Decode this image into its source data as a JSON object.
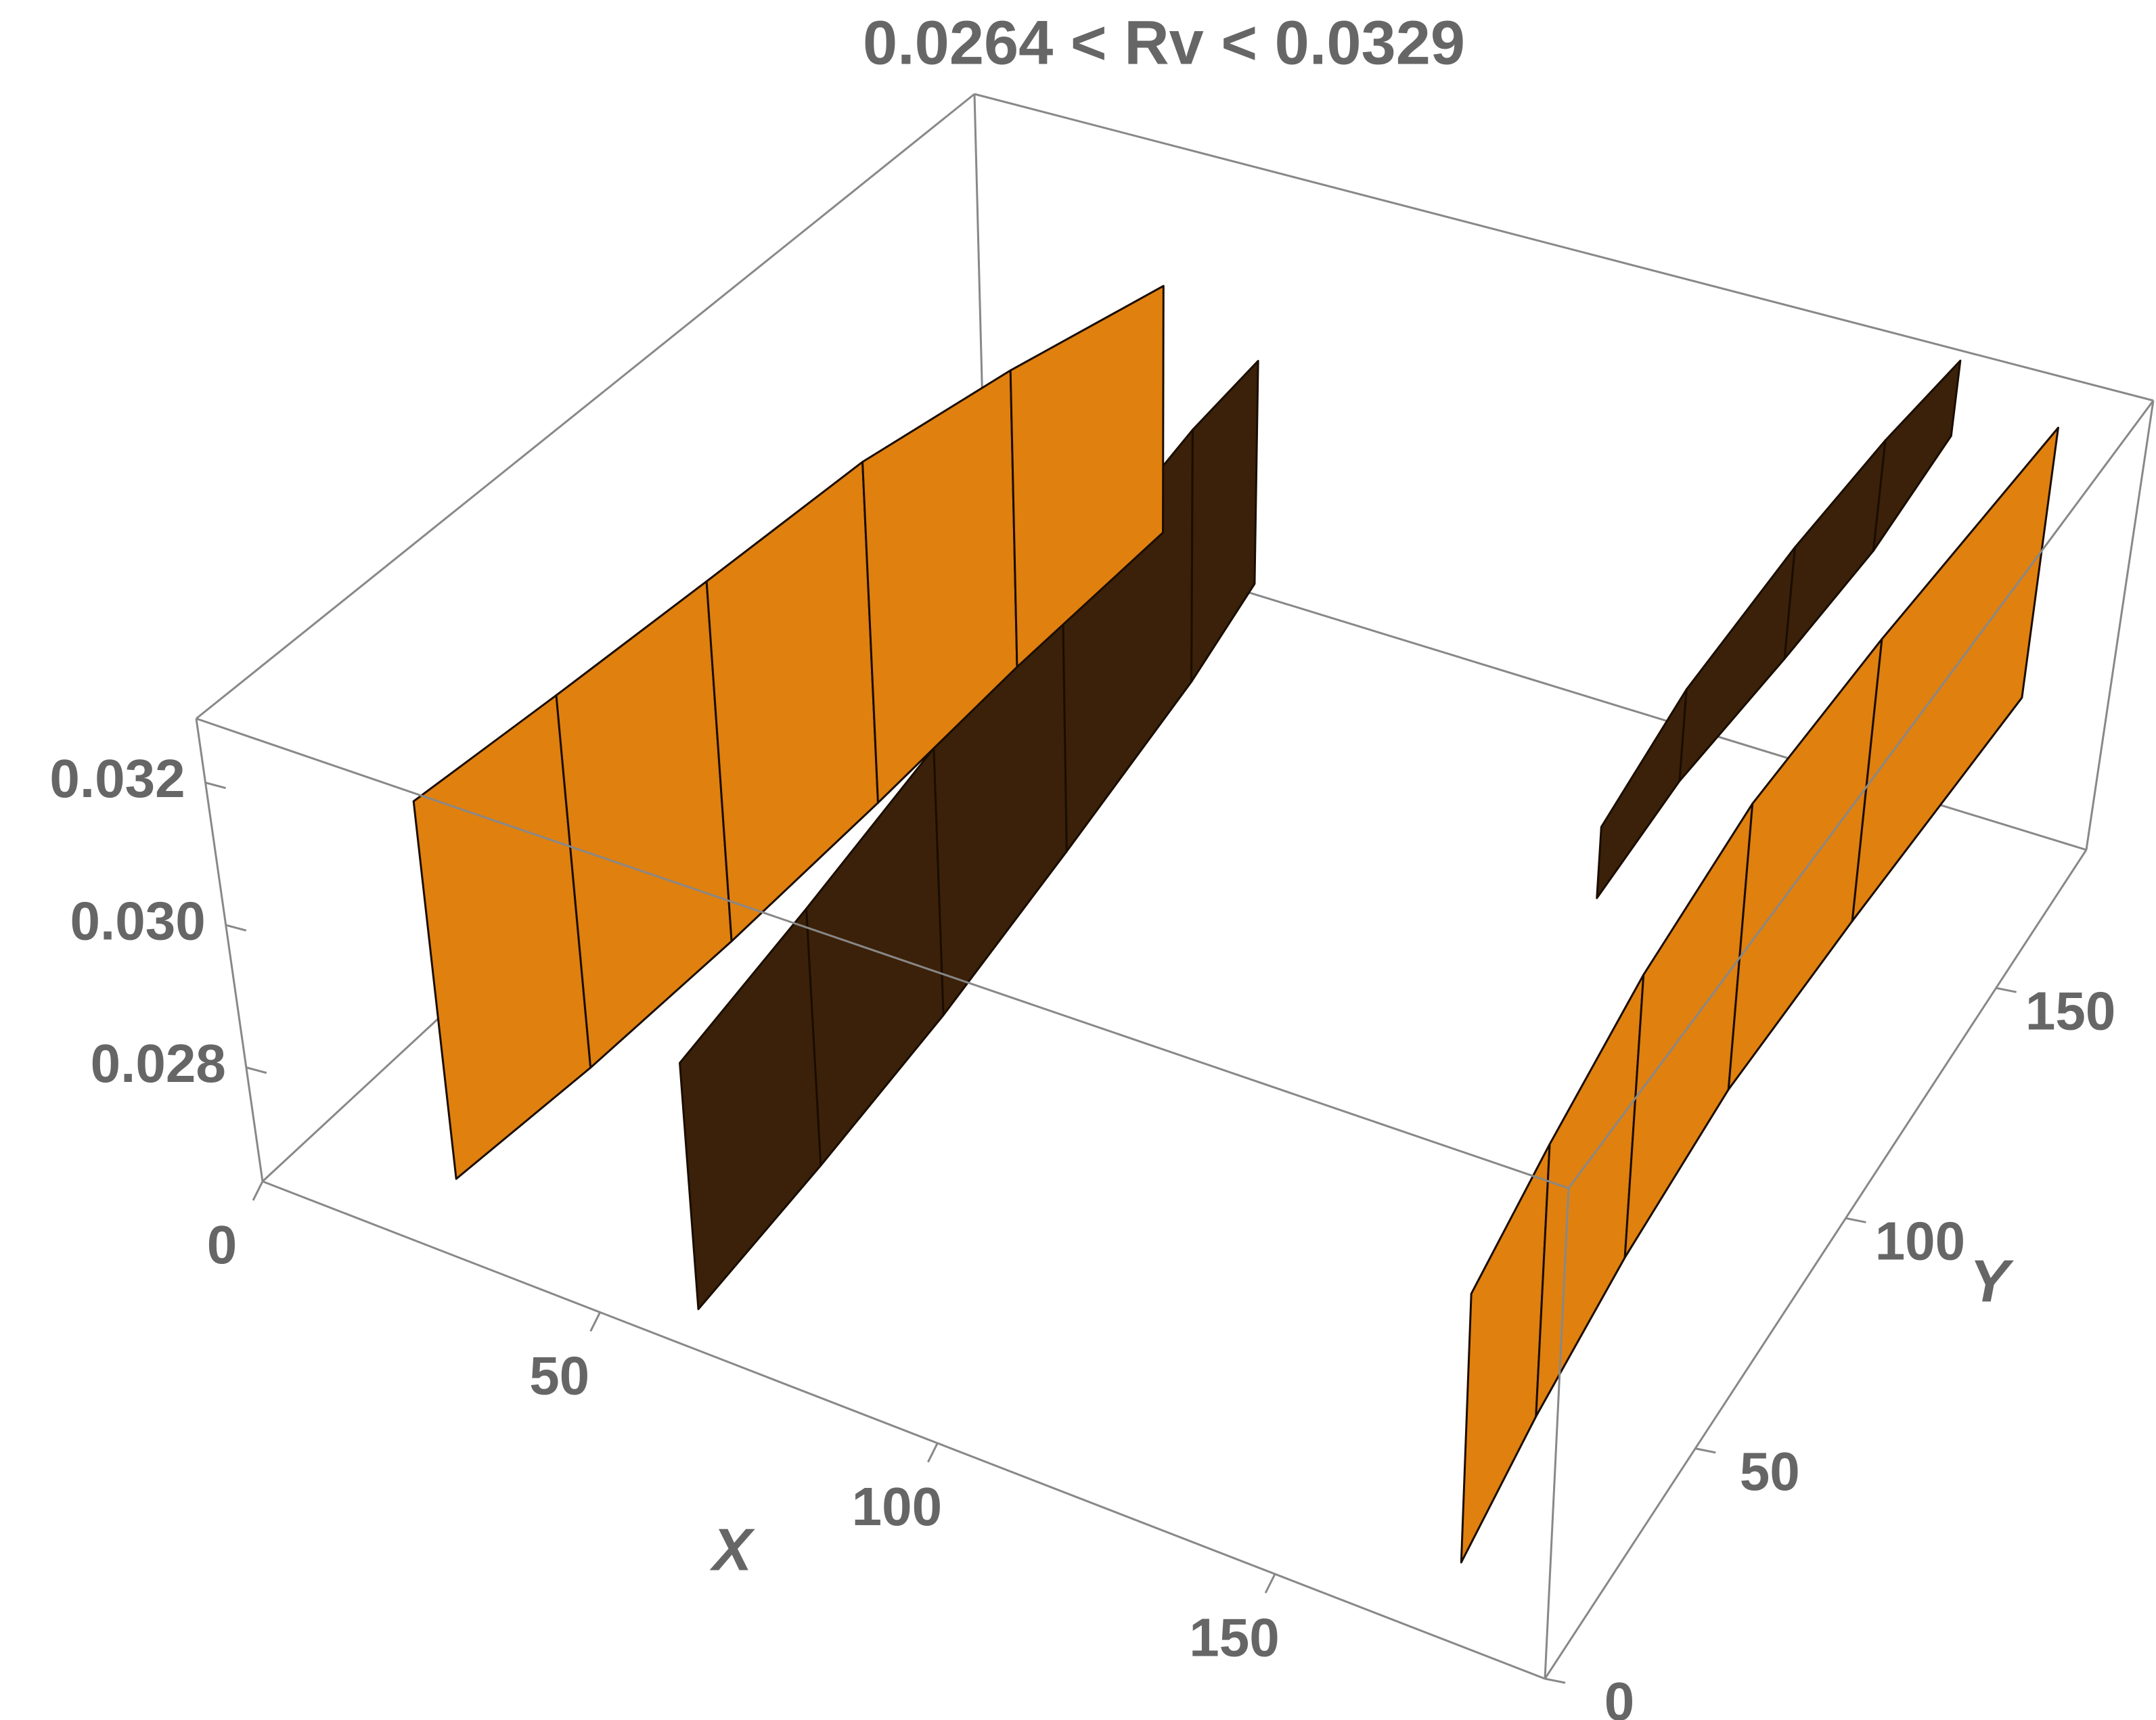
{
  "chart_data": {
    "type": "surface3d",
    "title": "0.0264  < Rv  < 0.0329",
    "xlabel": "X",
    "ylabel": "Y",
    "xlim": [
      0,
      190
    ],
    "ylim": [
      0,
      180
    ],
    "zlim": [
      0.0264,
      0.0329
    ],
    "xticks": [
      0,
      50,
      100,
      150
    ],
    "yticks": [
      0,
      50,
      100,
      150
    ],
    "zticks": [
      0.028,
      {
        "value": 0.03,
        "label": "0.030"
      },
      0.032
    ],
    "surfaces": [
      {
        "color": "#3b2109",
        "points": [
          [
            150,
            95,
            0.03,
            0.031
          ],
          [
            152,
            115,
            0.0305,
            0.0318
          ],
          [
            155,
            140,
            0.0308,
            0.0324
          ],
          [
            158,
            160,
            0.0312,
            0.0328
          ],
          [
            160,
            178,
            0.0318,
            0.0329
          ]
        ]
      },
      {
        "color": "#3b2109",
        "points": [
          [
            62,
            5,
            0.0266,
            0.03
          ],
          [
            64,
            35,
            0.027,
            0.0306
          ],
          [
            66,
            65,
            0.0275,
            0.0313
          ],
          [
            68,
            95,
            0.0282,
            0.032
          ],
          [
            70,
            125,
            0.029,
            0.0327
          ],
          [
            71,
            140,
            0.0296,
            0.0329
          ]
        ]
      },
      {
        "color": "#e0800f",
        "points": [
          [
            22,
            12,
            0.0266,
            0.0319
          ],
          [
            26,
            40,
            0.0268,
            0.0321
          ],
          [
            30,
            70,
            0.0271,
            0.0323
          ],
          [
            35,
            100,
            0.0276,
            0.0326
          ],
          [
            42,
            125,
            0.0284,
            0.0328
          ],
          [
            50,
            150,
            0.0292,
            0.0329
          ]
        ]
      },
      {
        "color": "#e0800f",
        "points": [
          [
            172,
            12,
            0.0266,
            0.0302
          ],
          [
            170,
            40,
            0.0268,
            0.0305
          ],
          [
            169,
            70,
            0.0271,
            0.031
          ],
          [
            170,
            100,
            0.0276,
            0.0316
          ],
          [
            174,
            130,
            0.0282,
            0.0322
          ],
          [
            180,
            170,
            0.029,
            0.0329
          ]
        ]
      }
    ]
  }
}
